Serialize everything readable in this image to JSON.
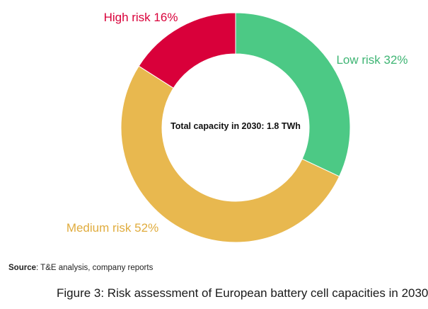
{
  "chart_data": {
    "type": "pie",
    "donut": true,
    "center_text": "Total capacity in 2030: 1.8 TWh",
    "slices": [
      {
        "label": "Low risk 32%",
        "value": 32,
        "color": "#4cc985"
      },
      {
        "label": "Medium risk 52%",
        "value": 52,
        "color": "#e8b84f"
      },
      {
        "label": "High risk 16%",
        "value": 16,
        "color": "#d9003a"
      }
    ],
    "label_colors": {
      "Low risk 32%": "#3fb574",
      "Medium risk 52%": "#e0ac3e",
      "High risk 16%": "#d9003a"
    }
  },
  "source": {
    "prefix": "Source",
    "text": ": T&E analysis, company reports"
  },
  "caption": "Figure 3:  Risk assessment of European battery cell capacities in 2030"
}
